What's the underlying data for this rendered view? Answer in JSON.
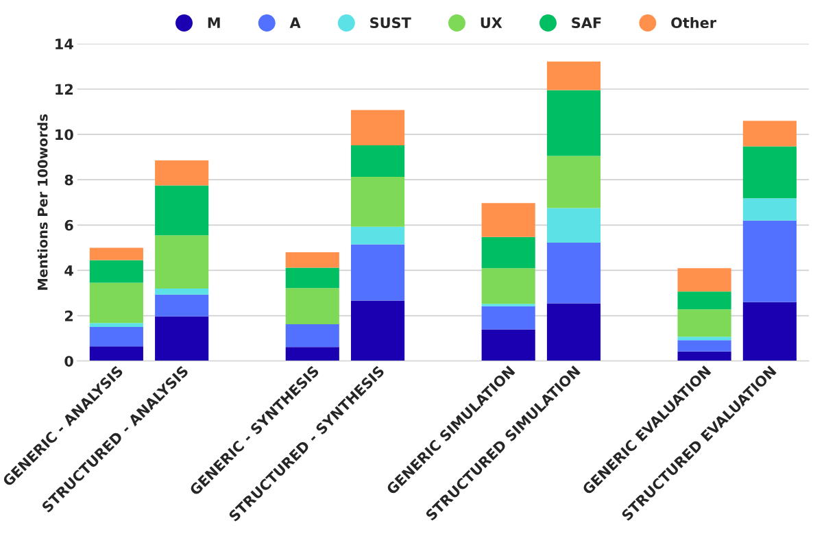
{
  "chart_data": {
    "type": "bar",
    "stacked": true,
    "ylabel": "Mentions Per 100words",
    "categories": [
      "GENERIC - ANALYSIS",
      "STRUCTURED - ANALYSIS",
      null,
      "GENERIC - SYNTHESIS",
      "STRUCTURED - SYNTHESIS",
      null,
      "GENERIC SIMULATION",
      "STRUCTURED SIMULATION",
      null,
      "GENERIC EVALUATION",
      "STRUCTURED EVALUATION"
    ],
    "series": [
      {
        "name": "M",
        "color": "#1a00b0",
        "values": [
          0.65,
          1.97,
          null,
          0.62,
          2.67,
          null,
          1.4,
          2.55,
          null,
          0.42,
          2.6
        ]
      },
      {
        "name": "A",
        "color": "#5271ff",
        "values": [
          0.85,
          0.96,
          null,
          1.0,
          2.48,
          null,
          1.02,
          2.67,
          null,
          0.5,
          3.6
        ]
      },
      {
        "name": "SUST",
        "color": "#5ce1e6",
        "values": [
          0.18,
          0.27,
          null,
          0,
          0.78,
          null,
          0.1,
          1.53,
          null,
          0.15,
          0.98
        ]
      },
      {
        "name": "UX",
        "color": "#7ed957",
        "values": [
          1.77,
          2.35,
          null,
          1.6,
          2.2,
          null,
          1.58,
          2.3,
          null,
          1.21,
          0
        ]
      },
      {
        "name": "SAF",
        "color": "#00bf63",
        "values": [
          1.0,
          2.2,
          null,
          0.9,
          1.39,
          null,
          1.37,
          2.9,
          null,
          0.79,
          2.29
        ]
      },
      {
        "name": "Other",
        "color": "#ff914d",
        "values": [
          0.55,
          1.1,
          null,
          0.68,
          1.56,
          null,
          1.5,
          1.27,
          null,
          1.03,
          1.13
        ]
      }
    ],
    "ylim": [
      0,
      14
    ],
    "yticks": [
      0,
      2,
      4,
      6,
      8,
      10,
      12,
      14
    ],
    "grid": "y",
    "legend": "top"
  }
}
